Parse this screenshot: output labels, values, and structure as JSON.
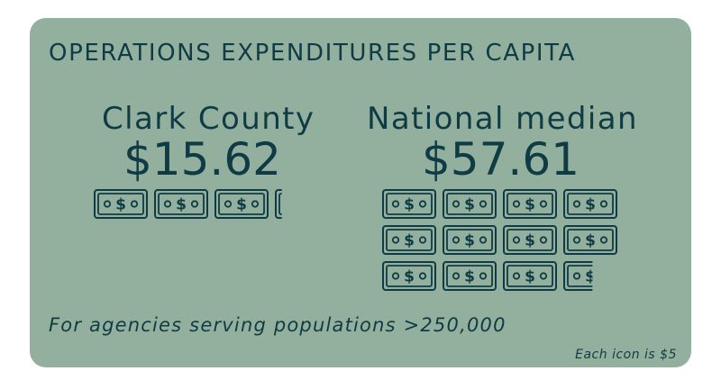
{
  "colors": {
    "card": "#93b09e",
    "ink": "#0f3b44"
  },
  "title": "OPERATIONS EXPENDITURES PER CAPITA",
  "footnote": "For agencies serving populations >250,000",
  "unit_note": "Each icon is $5",
  "icon": {
    "name": "dollar-bill-icon",
    "symbol": "$",
    "unit_value": 5
  },
  "chart_data": {
    "type": "pictograph",
    "unit_value": 5,
    "series": [
      {
        "name": "Clark County",
        "label": "Clark County",
        "value": 15.62,
        "value_label": "$15.62"
      },
      {
        "name": "National median",
        "label": "National median",
        "value": 57.61,
        "value_label": "$57.61"
      }
    ]
  }
}
